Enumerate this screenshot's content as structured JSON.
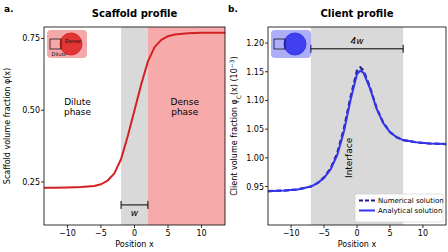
{
  "chart_data": [
    {
      "panel_label": "a.",
      "type": "line",
      "title": "Scaffold profile",
      "x_label": "Position x",
      "y_label": "Scaffold volume fraction φ(x)",
      "xlim": [
        -13.5,
        13.5
      ],
      "ylim": [
        0.1,
        0.79
      ],
      "xticks": [
        {
          "value": -10,
          "label": "−10"
        },
        {
          "value": -5,
          "label": "−5"
        },
        0,
        5,
        10
      ],
      "yticks": [
        0.25,
        {
          "value": 0.5,
          "label": "0.50"
        },
        0.75
      ],
      "grid": false,
      "x": [
        -13.5,
        -12,
        -10,
        -8,
        -6,
        -5,
        -4,
        -3,
        -2,
        -1,
        0,
        1,
        2,
        3,
        4,
        5,
        6,
        8,
        10,
        12,
        13.5
      ],
      "values": [
        0.23,
        0.23,
        0.231,
        0.232,
        0.236,
        0.242,
        0.255,
        0.28,
        0.33,
        0.41,
        0.5,
        0.59,
        0.67,
        0.72,
        0.745,
        0.758,
        0.764,
        0.768,
        0.77,
        0.77,
        0.77
      ],
      "color": "#d42020",
      "line_style": "solid",
      "bands": [
        {
          "x0": -2,
          "x1": 2,
          "color": "#d9d9d9"
        },
        {
          "x0": 2,
          "x1": 13.5,
          "color": "#f7aaaa"
        }
      ],
      "brackets": [
        {
          "x0": -2,
          "x1": 2,
          "y": 0.17,
          "label": "w"
        }
      ],
      "texts": [
        {
          "text": "Dilute phase",
          "x": -8.5,
          "y": 0.5
        },
        {
          "text": "Dense phase",
          "x": 7.5,
          "y": 0.5
        }
      ],
      "inset": {
        "labels": [
          "Dense",
          "Dilute"
        ],
        "color": "#e02828"
      }
    },
    {
      "panel_label": "b.",
      "type": "line",
      "title": "Client profile",
      "x_label": "Position x",
      "y_label": [
        {
          "text": "Client volume fraction φ"
        },
        {
          "text": "C",
          "sub": true
        },
        {
          "text": "(x)  (10"
        },
        {
          "text": "−3",
          "sup": true
        },
        {
          "text": ")"
        }
      ],
      "xlim": [
        -13.5,
        13.5
      ],
      "ylim": [
        0.883,
        1.228
      ],
      "xticks": [
        {
          "value": -10,
          "label": "−10"
        },
        {
          "value": -5,
          "label": "−5"
        },
        0,
        5,
        10
      ],
      "yticks": [
        0.95,
        {
          "value": 1.0,
          "label": "1.00"
        },
        1.05,
        {
          "value": 1.1,
          "label": "1.10"
        },
        1.15,
        {
          "value": 1.2,
          "label": "1.20"
        }
      ],
      "grid": false,
      "legend": "lower right",
      "x": [
        -13.5,
        -11,
        -9,
        -7,
        -6,
        -5,
        -4,
        -3,
        -2,
        -1,
        0,
        0.5,
        1,
        2,
        3,
        4,
        5,
        6,
        7,
        9,
        11,
        13.5
      ],
      "series": [
        {
          "name": "Numerical solution",
          "color": "#1e1e8c",
          "line_style": "dashed",
          "values": [
            0.942,
            0.943,
            0.945,
            0.95,
            0.956,
            0.966,
            0.982,
            1.008,
            1.05,
            1.105,
            1.152,
            1.158,
            1.152,
            1.122,
            1.086,
            1.061,
            1.045,
            1.036,
            1.031,
            1.027,
            1.025,
            1.024
          ]
        },
        {
          "name": "Analytical solution",
          "color": "#3434ee",
          "line_style": "solid",
          "values": [
            0.942,
            0.943,
            0.945,
            0.95,
            0.956,
            0.965,
            0.98,
            1.005,
            1.045,
            1.1,
            1.146,
            1.152,
            1.148,
            1.12,
            1.085,
            1.06,
            1.045,
            1.036,
            1.031,
            1.027,
            1.025,
            1.024
          ]
        }
      ],
      "bands": [
        {
          "x0": -7,
          "x1": 7,
          "color": "#d9d9d9"
        }
      ],
      "brackets": [
        {
          "x0": -7,
          "x1": 7,
          "y": 1.19,
          "label": "4w"
        }
      ],
      "interface_label": {
        "text": "Interface",
        "x": -0.8,
        "y": 1.0
      },
      "inset": {
        "color": "#3434ee"
      }
    }
  ]
}
